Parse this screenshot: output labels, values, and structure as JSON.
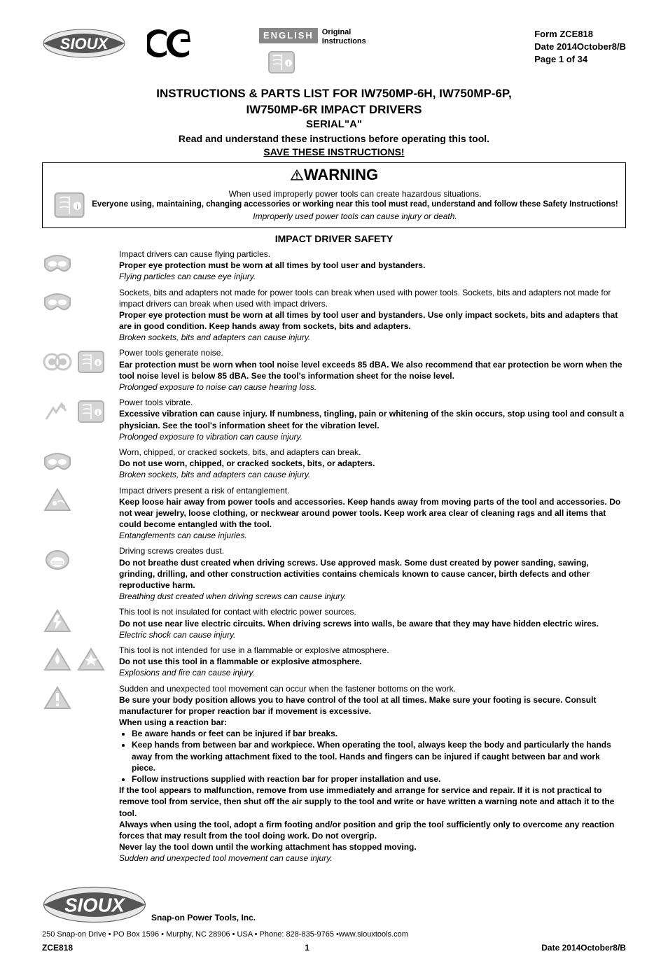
{
  "header": {
    "language_badge": "ENGLISH",
    "language_sub1": "Original",
    "language_sub2": "Instructions",
    "form": "Form ZCE818",
    "date": "Date 2014October8/B",
    "page": "Page 1 of 34"
  },
  "title": {
    "line1": "INSTRUCTIONS & PARTS LIST FOR IW750MP-6H, IW750MP-6P,",
    "line2": "IW750MP-6R IMPACT DRIVERS",
    "line3": "SERIAL\"A\"",
    "line4": "Read and understand these instructions before operating this tool.",
    "line5": "SAVE THESE INSTRUCTIONS!"
  },
  "warning": {
    "title": "WARNING",
    "line1": "When used improperly power tools can create hazardous situations.",
    "line2": "Everyone using, maintaining, changing accessories or working near this tool must read, understand and follow these Safety Instructions!",
    "line3": "Improperly used power tools can cause injury or death."
  },
  "section_title": "IMPACT DRIVER SAFETY",
  "items": [
    {
      "icons": [
        "goggles"
      ],
      "plain": "Impact drivers can cause flying particles.",
      "bold": "Proper eye protection must be worn at all times by tool user and bystanders.",
      "italic": "Flying particles can cause eye injury."
    },
    {
      "icons": [
        "goggles"
      ],
      "plain": "Sockets, bits and adapters not made for power tools can break when used with power tools. Sockets, bits and adapters not made for impact drivers can break when used with impact drivers.",
      "bold": "Proper eye protection must be worn at all times by tool user and bystanders. Use only impact sockets, bits and adapters that are in good condition. Keep hands away from sockets, bits and adapters.",
      "italic": "Broken sockets, bits and adapters can cause injury."
    },
    {
      "icons": [
        "earplugs",
        "manual"
      ],
      "plain": "Power tools generate noise.",
      "bold": "Ear protection must be worn when tool noise level exceeds 85 dBA. We also recommend that ear protection be worn when the tool noise level is below 85 dBA. See the tool's information sheet for the noise level.",
      "italic": "Prolonged exposure to noise can cause hearing loss."
    },
    {
      "icons": [
        "vibration",
        "manual"
      ],
      "plain": "Power tools vibrate.",
      "bold": "Excessive vibration can cause injury. If numbness, tingling, pain or whitening of the skin occurs, stop using tool and consult a physician. See the tool's information sheet for the vibration level.",
      "italic": "Prolonged exposure to vibration can cause injury."
    },
    {
      "icons": [
        "goggles"
      ],
      "plain": "Worn, chipped, or cracked sockets, bits, and adapters can break.",
      "bold": "Do not use worn, chipped, or cracked sockets, bits, or adapters.",
      "italic": "Broken sockets, bits and adapters can cause injury."
    },
    {
      "icons": [
        "entangle"
      ],
      "plain": "Impact drivers present  a risk of entanglement.",
      "bold": "Keep loose hair away from power tools and accessories. Keep hands away from moving parts of the tool and accessories. Do not wear jewelry, loose clothing, or neckwear around power tools. Keep work area clear of cleaning rags and all items that could become entangled with the tool.",
      "italic": "Entanglements can cause injuries."
    },
    {
      "icons": [
        "mask"
      ],
      "plain": "Driving screws creates dust.",
      "bold": "Do not breathe dust created when driving screws. Use approved mask.  Some dust created by power sanding, sawing, grinding, drilling, and other construction activities contains chemicals known to cause cancer, birth defects and other reproductive harm.",
      "italic": "Breathing dust created when driving screws can cause injury."
    },
    {
      "icons": [
        "electric"
      ],
      "plain": "This tool is not insulated for contact with electric power sources.",
      "bold": "Do not use near live electric circuits. When driving screws into walls, be aware that they may have hidden electric wires.",
      "italic": "Electric shock can cause injury."
    },
    {
      "icons": [
        "fire",
        "explosion"
      ],
      "plain": "This tool is not intended for use in a flammable or explosive atmosphere.",
      "bold": "Do not use this tool in a flammable or explosive atmosphere.",
      "italic": "Explosions and fire can cause injury."
    }
  ],
  "reaction": {
    "icons": [
      "caution"
    ],
    "plain": "Sudden and unexpected tool movement can occur when the fastener bottoms on the work.",
    "bold1": "Be sure your body position allows you to have control of the tool at all times. Make sure your footing is secure. Consult manufacturer for proper reaction bar if movement is excessive.",
    "bold2": "When using a reaction bar:",
    "bullets": [
      "Be aware hands or feet can be injured if bar breaks.",
      "Keep hands from between bar and workpiece. When operating the tool, always keep the body and particularly the hands away from the working attachment fixed to the tool. Hands and fingers can be injured if caught between bar and work piece.",
      "Follow instructions supplied with reaction bar for proper installation and use."
    ],
    "bold3": "If the tool appears to malfunction, remove from use immediately and arrange for service and repair. If it is not practical to remove tool from service, then shut off the air supply to the tool and write or have written a warning note and attach it to the tool.",
    "bold4": "Always when using the tool, adopt a firm footing and/or position and grip the tool sufficiently only to overcome any reaction forces that may result from the tool doing work. Do not overgrip.",
    "bold5": "Never lay the tool down until the working attachment has stopped moving.",
    "italic": "Sudden and unexpected tool movement can cause injury."
  },
  "footer": {
    "company": "Snap-on Power Tools, Inc.",
    "address": "250 Snap-on Drive • PO Box 1596 • Murphy, NC  28906 • USA • Phone: 828-835-9765 •www.siouxtools.com",
    "form": "ZCE818",
    "pageno": "1",
    "date": "Date 2014October8/B"
  },
  "colors": {
    "icon_fill": "#c8c8c8",
    "icon_stroke": "#b0b0b0",
    "text": "#000000",
    "badge_bg": "#888888"
  }
}
